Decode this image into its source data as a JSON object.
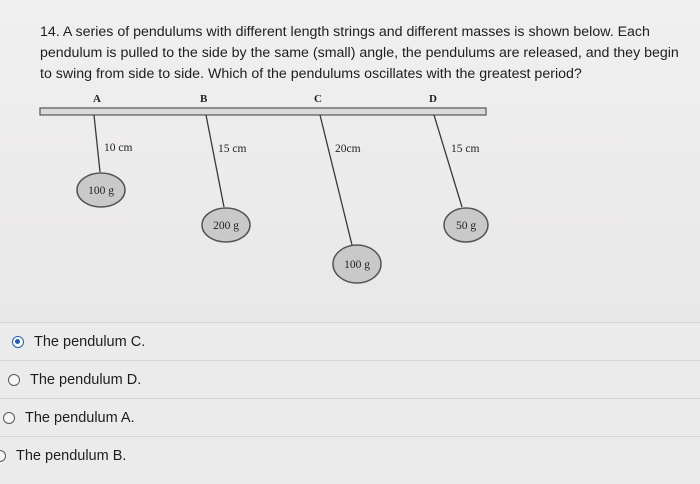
{
  "question": {
    "number": "14.",
    "text": "A series of pendulums with different length strings and different masses is shown below. Each pendulum is pulled to the side by the same (small) angle, the pendulums are released, and they begin to swing from side to side. Which of the pendulums oscillates with the greatest period?"
  },
  "figure": {
    "pendulums": [
      {
        "letter": "A",
        "length_label": "10 cm",
        "mass_label": "100 g"
      },
      {
        "letter": "B",
        "length_label": "15 cm",
        "mass_label": "200 g"
      },
      {
        "letter": "C",
        "length_label": "20cm",
        "mass_label": "100 g"
      },
      {
        "letter": "D",
        "length_label": "15 cm",
        "mass_label": "50 g"
      }
    ],
    "colors": {
      "bar": "#d9d9d9",
      "bob": "#c9c9c9",
      "string": "#3a3a3a"
    }
  },
  "options": [
    {
      "label": "The pendulum C.",
      "selected": true
    },
    {
      "label": "The pendulum D.",
      "selected": false
    },
    {
      "label": "The pendulum A.",
      "selected": false
    },
    {
      "label": "The pendulum B.",
      "selected": false
    }
  ],
  "colors": {
    "accent": "#1d5fae",
    "background": "#ecebeb"
  }
}
